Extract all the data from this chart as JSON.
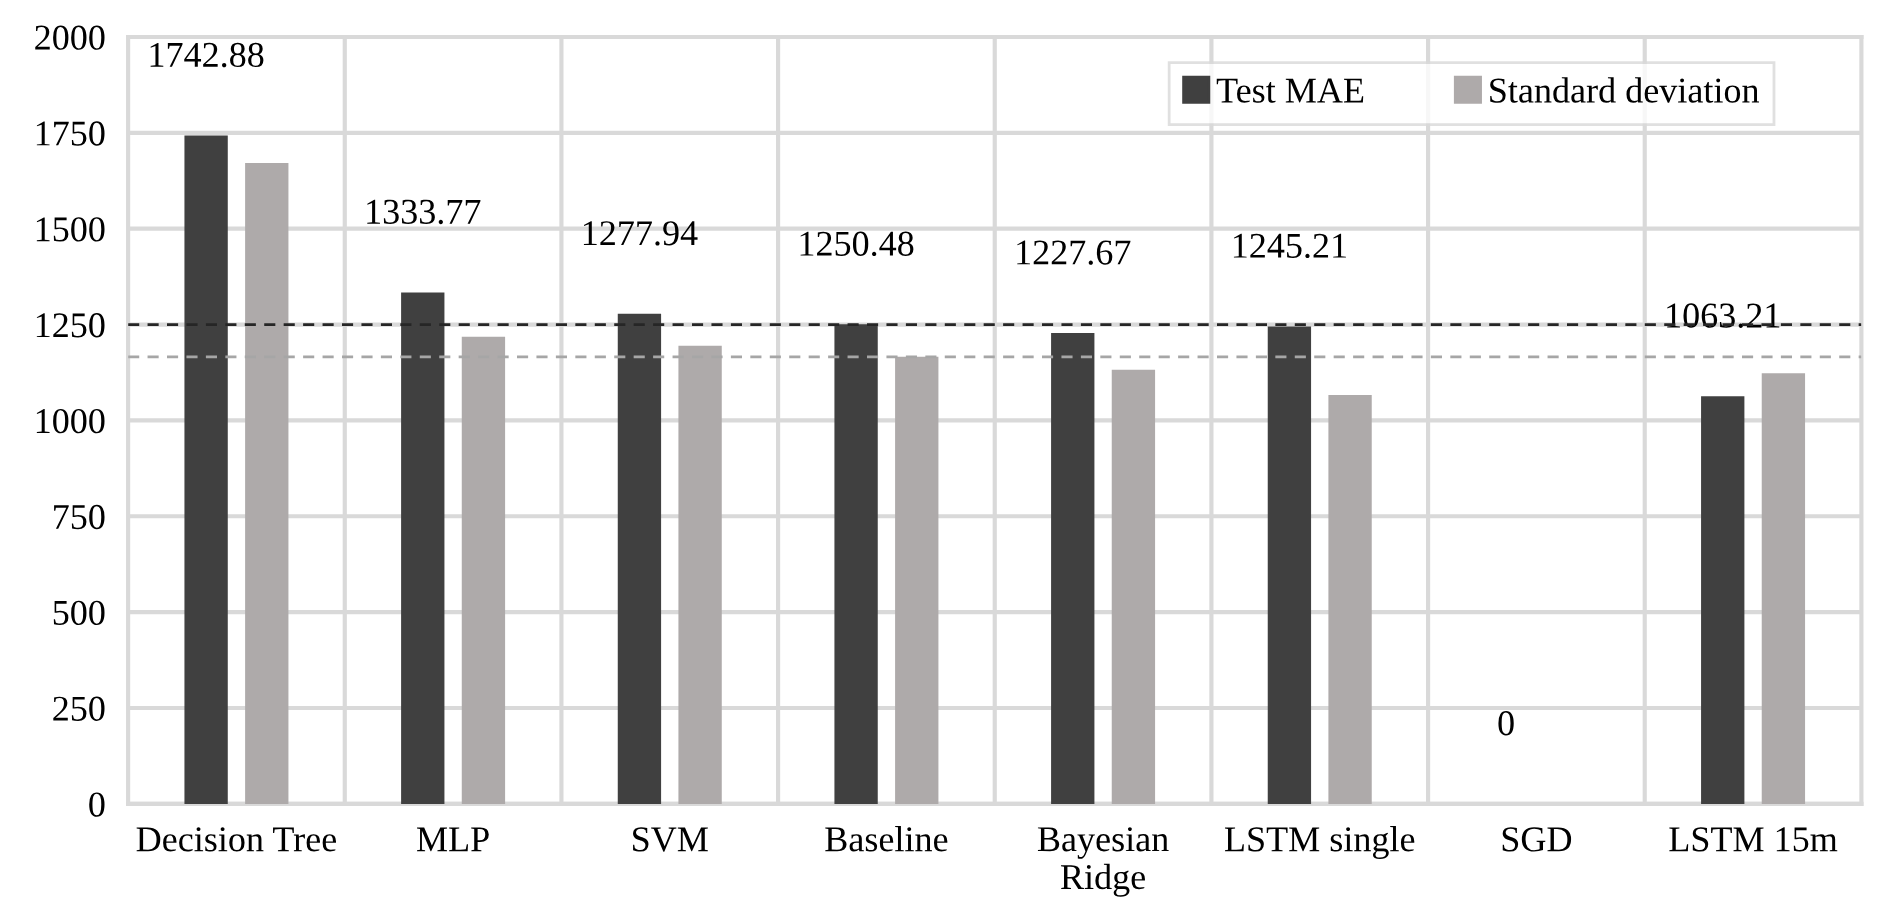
{
  "chart_data": {
    "type": "bar",
    "categories": [
      "Decision Tree",
      "MLP",
      "SVM",
      "Baseline",
      "Bayesian\nRidge",
      "LSTM single",
      "SGD",
      "LSTM 15m"
    ],
    "series": [
      {
        "name": "Test MAE",
        "color": "#404040",
        "values": [
          1742.88,
          1333.77,
          1277.94,
          1250.48,
          1227.67,
          1245.21,
          0,
          1063.21
        ],
        "value_labels": [
          "1742.88",
          "1333.77",
          "1277.94",
          "1250.48",
          "1227.67",
          "1245.21",
          "0",
          "1063.21"
        ]
      },
      {
        "name": "Standard deviation",
        "color": "#aeaaaa",
        "values": [
          1671,
          1218,
          1195,
          1166,
          1132,
          1066,
          0,
          1123
        ]
      }
    ],
    "ylim": [
      0,
      2000
    ],
    "yticks": [
      0,
      250,
      500,
      750,
      1000,
      1250,
      1500,
      1750,
      2000
    ],
    "ref_lines": [
      {
        "axis": "y",
        "value": 1250,
        "color": "#262626",
        "line_style": "dashed"
      },
      {
        "axis": "y",
        "value": 1166,
        "color": "#a6a6a6",
        "line_style": "dashed"
      }
    ],
    "grid": true,
    "legend": "top right"
  }
}
